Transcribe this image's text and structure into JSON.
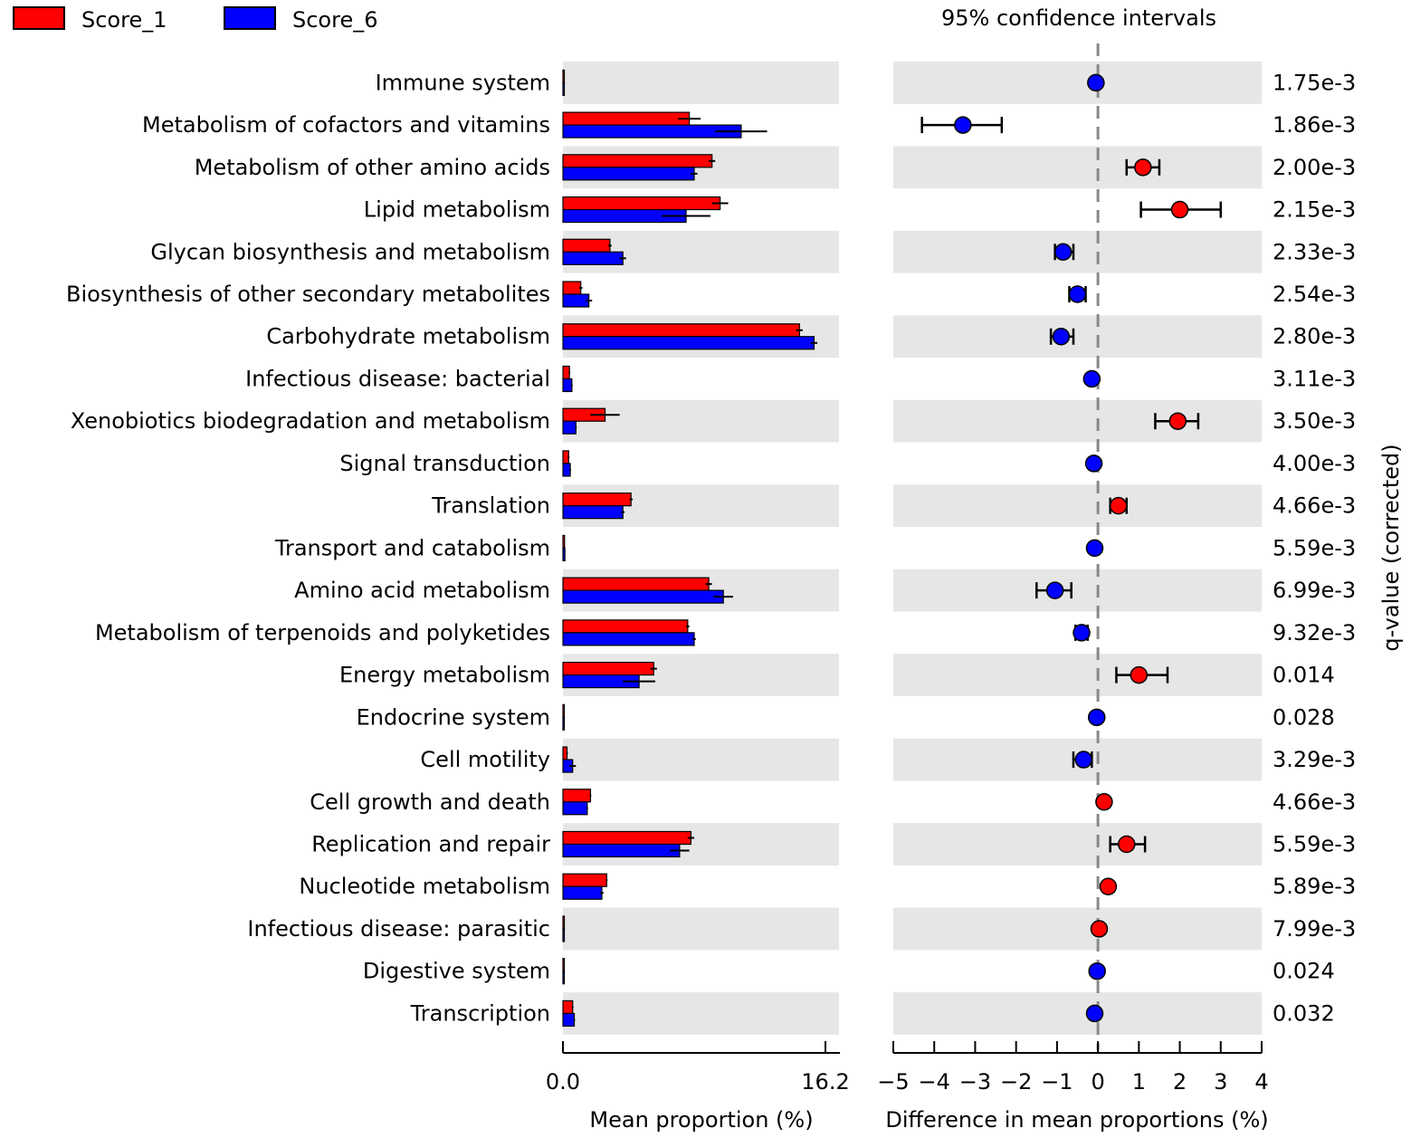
{
  "chart_data": {
    "type": "bar",
    "legend": [
      {
        "name": "Score_1",
        "color": "#ff0000"
      },
      {
        "name": "Score_6",
        "color": "#0000ff"
      }
    ],
    "ci_title": "95% confidence intervals",
    "bar_panel": {
      "xlabel": "Mean proportion (%)",
      "xlim": [
        0,
        16.2
      ],
      "tick_labels": [
        "0.0",
        "16.2"
      ]
    },
    "diff_panel": {
      "xlabel": "Difference in mean proportions (%)",
      "xlim": [
        -5,
        4
      ],
      "ticks": [
        -5,
        -4,
        -3,
        -2,
        -1,
        0,
        1,
        2,
        3,
        4
      ],
      "tick_labels": [
        "−5",
        "−4",
        "−3",
        "−2",
        "−1",
        "0",
        "1",
        "2",
        "3",
        "4"
      ]
    },
    "qvalue_label": "q-value (corrected)",
    "categories": [
      "Immune system",
      "Metabolism of cofactors and vitamins",
      "Metabolism of other amino acids",
      "Lipid metabolism",
      "Glycan biosynthesis and metabolism",
      "Biosynthesis of other secondary metabolites",
      "Carbohydrate metabolism",
      "Infectious disease: bacterial",
      "Xenobiotics biodegradation and metabolism",
      "Signal transduction",
      "Translation",
      "Transport and catabolism",
      "Amino acid metabolism",
      "Metabolism of terpenoids and polyketides",
      "Energy metabolism",
      "Endocrine system",
      "Cell motility",
      "Cell growth and death",
      "Replication and repair",
      "Nucleotide metabolism",
      "Infectious disease: parasitic",
      "Digestive system",
      "Transcription"
    ],
    "series": [
      {
        "name": "Score_1",
        "values": [
          0.04,
          7.8,
          9.2,
          9.7,
          2.9,
          1.1,
          14.6,
          0.4,
          2.6,
          0.35,
          4.2,
          0.1,
          9.0,
          7.7,
          5.6,
          0.05,
          0.25,
          1.7,
          7.9,
          2.7,
          0.06,
          0.03,
          0.6
        ],
        "errors": [
          0.01,
          0.7,
          0.2,
          0.5,
          0.1,
          0.1,
          0.2,
          0.05,
          0.9,
          0.05,
          0.1,
          0.01,
          0.2,
          0.1,
          0.2,
          0.01,
          0.05,
          0.05,
          0.2,
          0.05,
          0.01,
          0.01,
          0.05
        ]
      },
      {
        "name": "Score_6",
        "values": [
          0.06,
          11.0,
          8.1,
          7.6,
          3.7,
          1.6,
          15.5,
          0.55,
          0.8,
          0.45,
          3.7,
          0.12,
          9.9,
          8.1,
          4.7,
          0.06,
          0.6,
          1.5,
          7.2,
          2.4,
          0.07,
          0.05,
          0.7
        ],
        "errors": [
          0.01,
          1.6,
          0.2,
          1.5,
          0.2,
          0.2,
          0.2,
          0.05,
          0.05,
          0.05,
          0.1,
          0.01,
          0.6,
          0.1,
          1.0,
          0.01,
          0.2,
          0.05,
          0.6,
          0.1,
          0.01,
          0.01,
          0.05
        ]
      }
    ],
    "difference": {
      "values": [
        -0.05,
        -3.3,
        1.1,
        2.0,
        -0.85,
        -0.5,
        -0.9,
        -0.15,
        1.95,
        -0.1,
        0.5,
        -0.08,
        -1.05,
        -0.4,
        1.0,
        -0.03,
        -0.35,
        0.15,
        0.7,
        0.25,
        0.03,
        -0.02,
        -0.08
      ],
      "ci_low": [
        -0.1,
        -4.3,
        0.7,
        1.05,
        -1.05,
        -0.7,
        -1.15,
        -0.2,
        1.4,
        -0.15,
        0.3,
        -0.1,
        -1.5,
        -0.55,
        0.45,
        -0.05,
        -0.6,
        0.1,
        0.3,
        0.2,
        0.01,
        -0.04,
        -0.12
      ],
      "ci_high": [
        0.0,
        -2.35,
        1.5,
        3.0,
        -0.6,
        -0.3,
        -0.6,
        -0.1,
        2.45,
        -0.05,
        0.7,
        -0.05,
        -0.65,
        -0.25,
        1.7,
        0.0,
        -0.15,
        0.2,
        1.15,
        0.3,
        0.05,
        0.0,
        -0.04
      ],
      "colors": [
        "blue",
        "blue",
        "red",
        "red",
        "blue",
        "blue",
        "blue",
        "blue",
        "red",
        "blue",
        "red",
        "blue",
        "blue",
        "blue",
        "red",
        "blue",
        "blue",
        "red",
        "red",
        "red",
        "red",
        "blue",
        "blue"
      ]
    },
    "q_values": [
      "1.75e-3",
      "1.86e-3",
      "2.00e-3",
      "2.15e-3",
      "2.33e-3",
      "2.54e-3",
      "2.80e-3",
      "3.11e-3",
      "3.50e-3",
      "4.00e-3",
      "4.66e-3",
      "5.59e-3",
      "6.99e-3",
      "9.32e-3",
      "0.014",
      "0.028",
      "3.29e-3",
      "4.66e-3",
      "5.59e-3",
      "5.89e-3",
      "7.99e-3",
      "0.024",
      "0.032"
    ]
  }
}
